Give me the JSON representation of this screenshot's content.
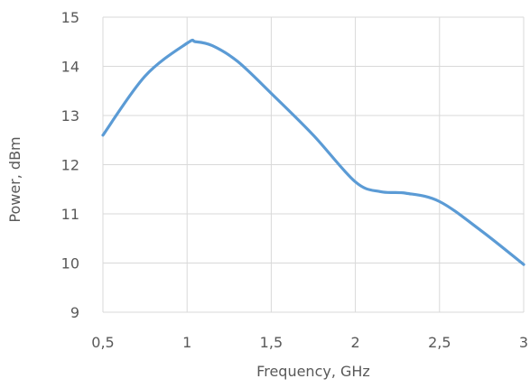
{
  "chart_data": {
    "type": "line",
    "title": "",
    "xlabel": "Frequency, GHz",
    "ylabel": "Power, dBm",
    "xlim": [
      0.5,
      3
    ],
    "ylim": [
      9,
      15
    ],
    "x_ticks": [
      0.5,
      1,
      1.5,
      2,
      2.5,
      3
    ],
    "x_tick_labels": [
      "0,5",
      "1",
      "1,5",
      "2",
      "2,5",
      "3"
    ],
    "y_ticks": [
      9,
      10,
      11,
      12,
      13,
      14,
      15
    ],
    "y_tick_labels": [
      "9",
      "10",
      "11",
      "12",
      "13",
      "14",
      "15"
    ],
    "grid": true,
    "series": [
      {
        "color": "#5b9bd5",
        "x": [
          0.5,
          0.75,
          1.0,
          1.05,
          1.15,
          1.3,
          1.5,
          1.75,
          2.0,
          2.15,
          2.3,
          2.5,
          2.75,
          3.0
        ],
        "y": [
          12.6,
          13.8,
          14.47,
          14.5,
          14.42,
          14.1,
          13.45,
          12.6,
          11.65,
          11.45,
          11.42,
          11.25,
          10.65,
          9.97
        ]
      }
    ]
  }
}
